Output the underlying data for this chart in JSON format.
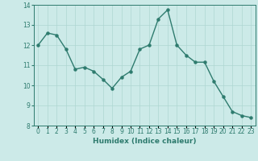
{
  "x": [
    0,
    1,
    2,
    3,
    4,
    5,
    6,
    7,
    8,
    9,
    10,
    11,
    12,
    13,
    14,
    15,
    16,
    17,
    18,
    19,
    20,
    21,
    22,
    23
  ],
  "y": [
    12.0,
    12.6,
    12.5,
    11.8,
    10.8,
    10.9,
    10.7,
    10.3,
    9.85,
    10.4,
    10.7,
    11.8,
    12.0,
    13.3,
    13.75,
    12.0,
    11.5,
    11.15,
    11.15,
    10.2,
    9.45,
    8.7,
    8.5,
    8.4
  ],
  "line_color": "#2e7b6e",
  "marker": "o",
  "marker_size": 2.2,
  "line_width": 1.0,
  "bg_color": "#cceae8",
  "grid_color": "#afd6d2",
  "xlabel": "Humidex (Indice chaleur)",
  "xlim": [
    -0.5,
    23.5
  ],
  "ylim": [
    8,
    14
  ],
  "yticks": [
    8,
    9,
    10,
    11,
    12,
    13,
    14
  ],
  "xlabel_fontsize": 6.5,
  "tick_fontsize": 5.5
}
